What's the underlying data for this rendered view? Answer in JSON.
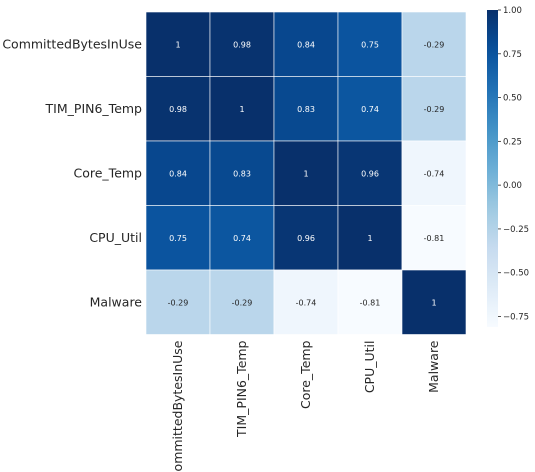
{
  "chart_data": {
    "type": "heatmap",
    "title": "",
    "xlabel": "",
    "ylabel": "",
    "rows": [
      "CommittedBytesInUse",
      "TIM_PIN6_Temp",
      "Core_Temp",
      "CPU_Util",
      "Malware"
    ],
    "columns": [
      "CommittedBytesInUse",
      "TIM_PIN6_Temp",
      "Core_Temp",
      "CPU_Util",
      "Malware"
    ],
    "values": [
      [
        1,
        0.98,
        0.84,
        0.75,
        -0.29
      ],
      [
        0.98,
        1,
        0.83,
        0.74,
        -0.29
      ],
      [
        0.84,
        0.83,
        1,
        0.96,
        -0.74
      ],
      [
        0.75,
        0.74,
        0.96,
        1,
        -0.81
      ],
      [
        -0.29,
        -0.29,
        -0.74,
        -0.81,
        1
      ]
    ],
    "cell_labels": [
      [
        "1",
        "0.98",
        "0.84",
        "0.75",
        "-0.29"
      ],
      [
        "0.98",
        "1",
        "0.83",
        "0.74",
        "-0.29"
      ],
      [
        "0.84",
        "0.83",
        "1",
        "0.96",
        "-0.74"
      ],
      [
        "0.75",
        "0.74",
        "0.96",
        "1",
        "-0.81"
      ],
      [
        "-0.29",
        "-0.29",
        "-0.74",
        "-0.81",
        "1"
      ]
    ],
    "colormap": "Blues",
    "vmin": -0.81,
    "vmax": 1.0,
    "colorbar": {
      "ticks": [
        1.0,
        0.75,
        0.5,
        0.25,
        0.0,
        -0.25,
        -0.5,
        -0.75
      ],
      "tick_labels": [
        "1.00",
        "0.75",
        "0.50",
        "0.25",
        "0.00",
        "−0.25",
        "−0.50",
        "−0.75"
      ]
    },
    "grid": false,
    "legend": "colorbar-right"
  }
}
